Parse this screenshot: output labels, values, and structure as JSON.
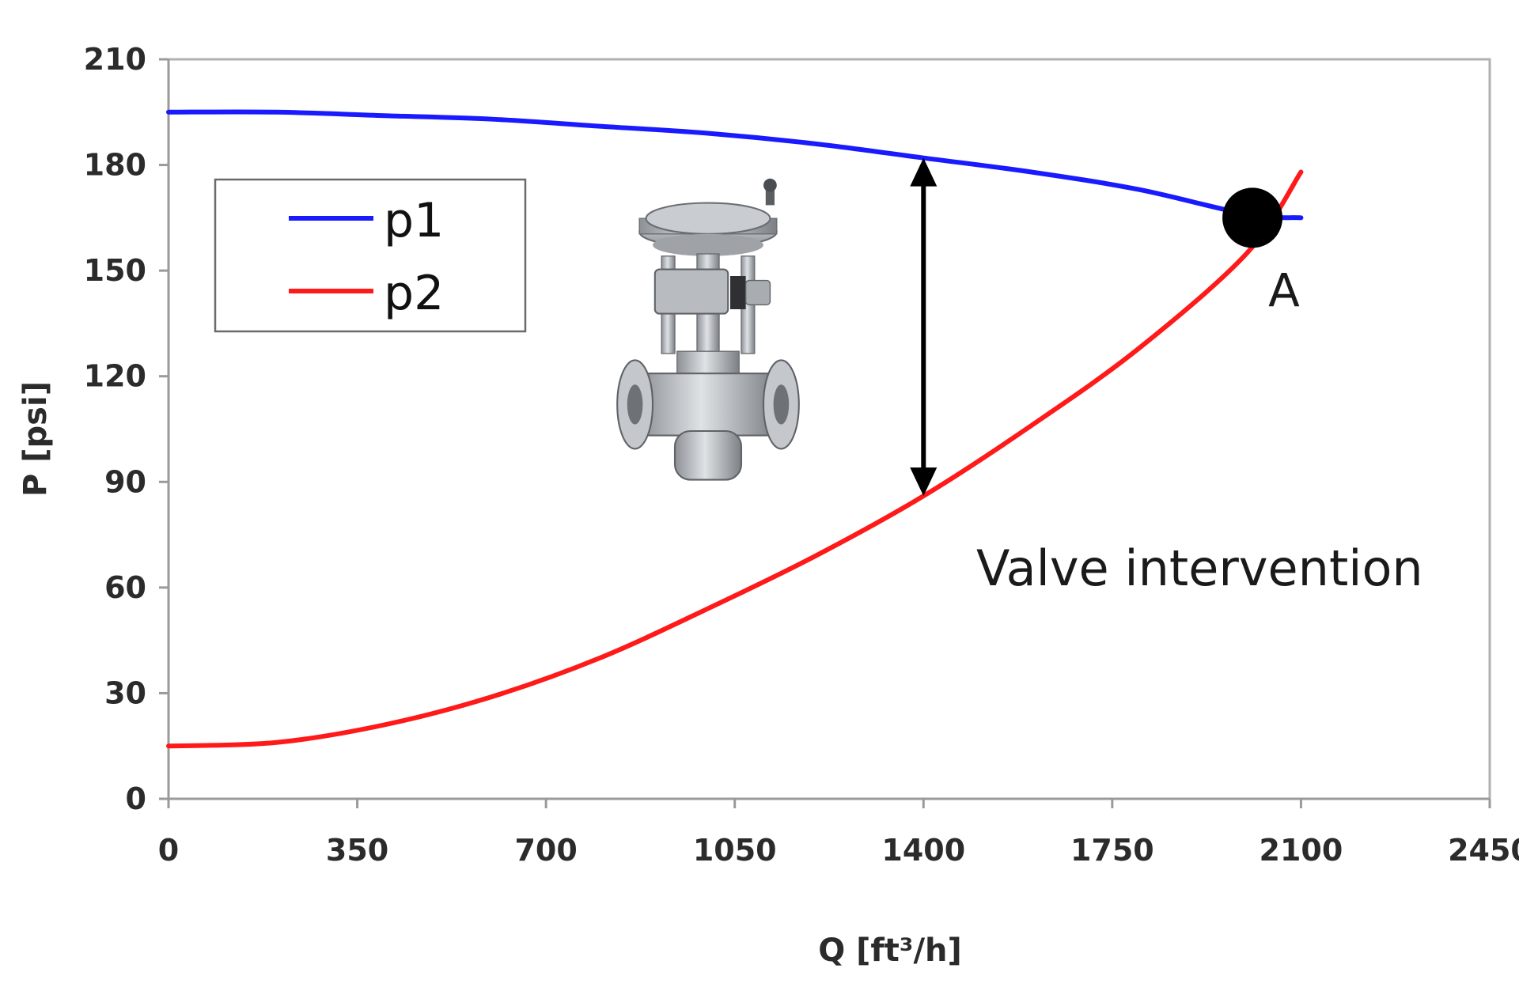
{
  "chart_data": {
    "type": "line",
    "title": "",
    "xlabel": "Q [ft³/h]",
    "ylabel": "P [psi]",
    "xlim": [
      0,
      2450
    ],
    "ylim": [
      0,
      210
    ],
    "xticks": [
      0,
      350,
      700,
      1050,
      1400,
      1750,
      2100,
      2450
    ],
    "yticks": [
      0,
      30,
      60,
      90,
      120,
      150,
      180,
      210
    ],
    "grid": false,
    "legend_position": "upper-left",
    "series": [
      {
        "name": "p1",
        "color": "#1a1aff",
        "x": [
          0,
          200,
          400,
          600,
          800,
          1000,
          1200,
          1400,
          1600,
          1800,
          2000,
          2100
        ],
        "y": [
          195,
          195,
          194,
          193,
          191,
          189,
          186,
          182,
          178,
          173,
          166,
          165
        ]
      },
      {
        "name": "p2",
        "color": "#ff1a1a",
        "x": [
          0,
          200,
          400,
          600,
          800,
          1000,
          1200,
          1400,
          1600,
          1800,
          2000,
          2100
        ],
        "y": [
          15,
          16,
          21,
          29,
          40,
          54,
          69,
          86,
          106,
          128,
          155,
          178
        ]
      }
    ],
    "annotations": {
      "intersection_point": {
        "label": "A",
        "x": 2010,
        "y": 165,
        "color": "#000000"
      },
      "double_arrow": {
        "x": 1400,
        "y_top": 182,
        "y_bottom": 86,
        "color": "#000000"
      },
      "text": "Valve intervention",
      "image": "control-valve-icon"
    }
  }
}
